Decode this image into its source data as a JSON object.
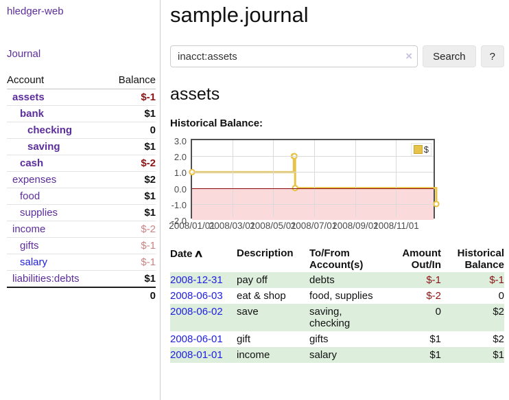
{
  "colors": {
    "link_purple": "#5c2d9c",
    "link_blue": "#2020e0",
    "negative_strong": "#8b1313",
    "negative_soft": "#c98383",
    "row_stripe_green": "#ddeedd",
    "chart_line_gold": "#e8c34a",
    "chart_negative_region_pink": "#fadada",
    "chart_zero_line_red": "#8b0000"
  },
  "sidebar": {
    "app_title": "hledger-web",
    "journal_link": "Journal",
    "accounts_table": {
      "account_header": "Account",
      "balance_header": "Balance",
      "rows": [
        {
          "account": "assets",
          "depth": 0,
          "bold": true,
          "link_color": "purple",
          "balance": "$-1",
          "balance_style": "strong"
        },
        {
          "account": "bank",
          "depth": 1,
          "bold": true,
          "link_color": "purple",
          "balance": "$1",
          "balance_style": "pos"
        },
        {
          "account": "checking",
          "depth": 2,
          "bold": true,
          "link_color": "purple",
          "balance": "0",
          "balance_style": "pos"
        },
        {
          "account": "saving",
          "depth": 2,
          "bold": true,
          "link_color": "purple",
          "balance": "$1",
          "balance_style": "pos"
        },
        {
          "account": "cash",
          "depth": 1,
          "bold": true,
          "link_color": "purple",
          "balance": "$-2",
          "balance_style": "strong"
        },
        {
          "account": "expenses",
          "depth": 0,
          "bold": false,
          "link_color": "purple",
          "balance": "$2",
          "balance_style": "pos"
        },
        {
          "account": "food",
          "depth": 1,
          "bold": false,
          "link_color": "purple",
          "balance": "$1",
          "balance_style": "pos"
        },
        {
          "account": "supplies",
          "depth": 1,
          "bold": false,
          "link_color": "purple",
          "balance": "$1",
          "balance_style": "pos"
        },
        {
          "account": "income",
          "depth": 0,
          "bold": false,
          "link_color": "purple",
          "balance": "$-2",
          "balance_style": "soft"
        },
        {
          "account": "gifts",
          "depth": 1,
          "bold": false,
          "link_color": "purple",
          "balance": "$-1",
          "balance_style": "soft"
        },
        {
          "account": "salary",
          "depth": 1,
          "bold": false,
          "link_color": "blue",
          "balance": "$-1",
          "balance_style": "soft"
        },
        {
          "account": "liabilities:debts",
          "depth": 0,
          "bold": false,
          "link_color": "purple",
          "balance": "$1",
          "balance_style": "pos"
        }
      ],
      "total": "0"
    }
  },
  "main": {
    "title": "sample.journal",
    "search": {
      "value": "inacct:assets",
      "clear_icon": "×",
      "button_label": "Search",
      "help_label": "?"
    },
    "account_heading": "assets",
    "chart_title": "Historical Balance:",
    "register_table": {
      "headers": {
        "date": "Date",
        "sort_icon": "∧",
        "description": "Description",
        "accounts": "To/From Account(s)",
        "amount": "Amount Out/In",
        "balance": "Historical Balance"
      },
      "rows": [
        {
          "date": "2008-12-31",
          "description": "pay off",
          "accounts": "debts",
          "amount": "$-1",
          "amount_negative": true,
          "balance": "$-1",
          "balance_negative": true
        },
        {
          "date": "2008-06-03",
          "description": "eat & shop",
          "accounts": "food, supplies",
          "amount": "$-2",
          "amount_negative": true,
          "balance": "0",
          "balance_negative": false
        },
        {
          "date": "2008-06-02",
          "description": "save",
          "accounts": "saving, checking",
          "amount": "0",
          "amount_negative": false,
          "balance": "$2",
          "balance_negative": false
        },
        {
          "date": "2008-06-01",
          "description": "gift",
          "accounts": "gifts",
          "amount": "$1",
          "amount_negative": false,
          "balance": "$2",
          "balance_negative": false
        },
        {
          "date": "2008-01-01",
          "description": "income",
          "accounts": "salary",
          "amount": "$1",
          "amount_negative": false,
          "balance": "$1",
          "balance_negative": false
        }
      ]
    }
  },
  "chart_data": {
    "type": "line",
    "step": true,
    "title": "Historical Balance",
    "xlim": [
      "2008-01-01",
      "2008-12-31"
    ],
    "ylim": [
      -2,
      3
    ],
    "y_ticks": [
      "3.0",
      "2.0",
      "1.0",
      "0.0",
      "-1.0",
      "-2.0"
    ],
    "x_ticks": [
      "2008/01/01",
      "2008/03/01",
      "2008/05/01",
      "2008/07/01",
      "2008/09/01",
      "2008/11/01"
    ],
    "legend_position": "top-right",
    "grid": true,
    "negative_region_shaded": true,
    "series": [
      {
        "name": "$",
        "color": "#e8c34a",
        "points": [
          [
            "2008-01-01",
            1
          ],
          [
            "2008-06-01",
            2
          ],
          [
            "2008-06-02",
            2
          ],
          [
            "2008-06-03",
            0
          ],
          [
            "2008-12-31",
            -1
          ]
        ]
      }
    ]
  }
}
